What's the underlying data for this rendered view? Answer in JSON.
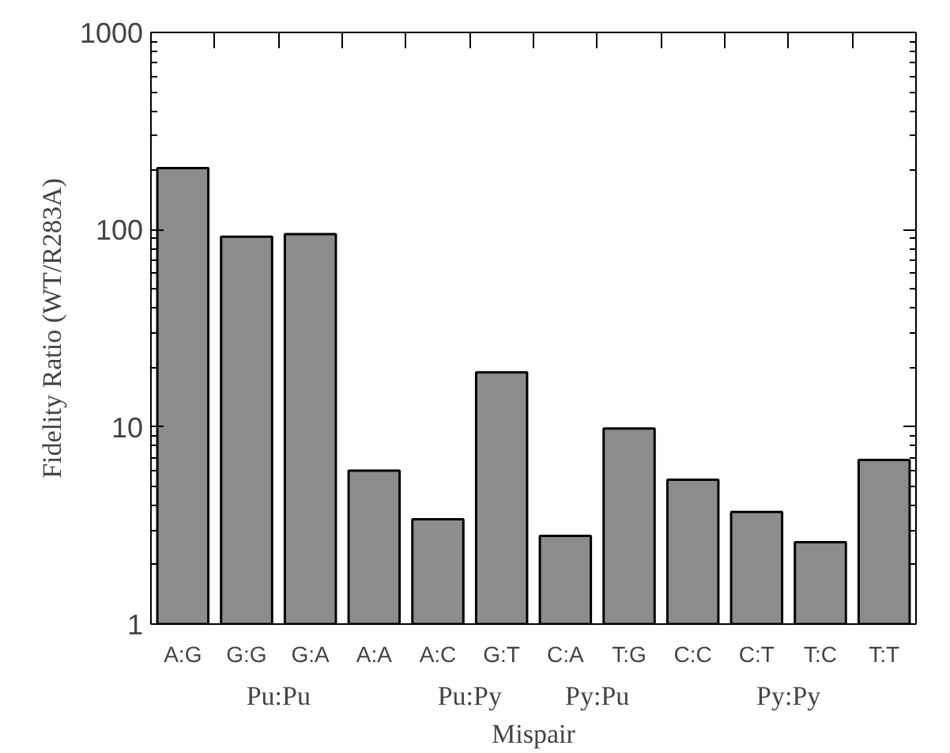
{
  "chart_data": {
    "type": "bar",
    "xlabel": "Mispair",
    "ylabel": "Fidelity Ratio (WT/R283A)",
    "categories": [
      "A:G",
      "G:G",
      "G:A",
      "A:A",
      "A:C",
      "G:T",
      "C:A",
      "T:G",
      "C:C",
      "C:T",
      "T:C",
      "T:T"
    ],
    "values": [
      205,
      92,
      95,
      6.0,
      3.4,
      18.9,
      2.8,
      9.8,
      5.4,
      3.7,
      2.6,
      6.8
    ],
    "color": "#8c8c8c",
    "annotations": [
      "Pu:Pu",
      "Pu:Py",
      "Py:Pu",
      "Py:Py"
    ],
    "log": "y",
    "ylim": [
      1,
      1000
    ],
    "yticks": [
      1,
      10,
      100,
      1000
    ],
    "grid": false
  }
}
